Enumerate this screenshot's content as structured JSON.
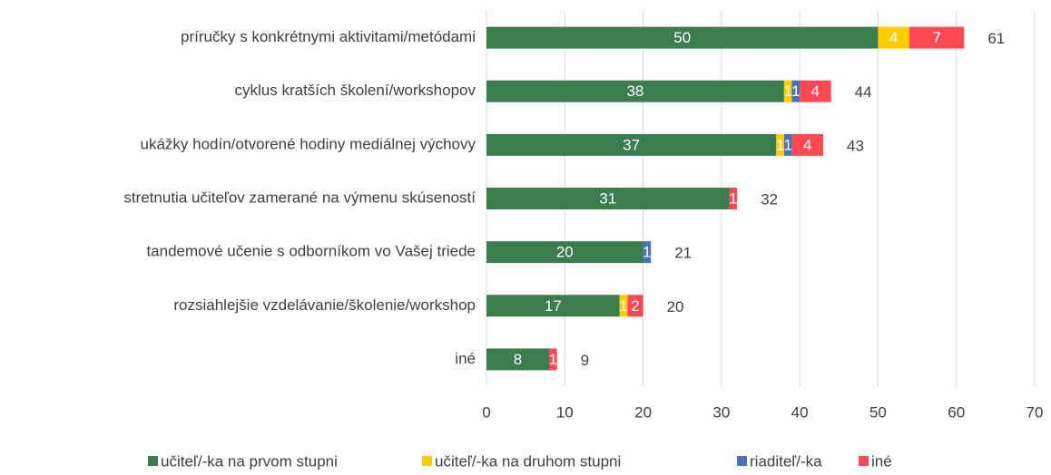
{
  "chart_data": {
    "type": "stacked-bar-horizontal",
    "categories": [
      "príručky s konkrétnymi aktivitami/metódami",
      "cyklus kratších školení/workshopov",
      "ukážky hodín/otvorené hodiny mediálnej výchovy",
      "stretnutia učiteľov zamerané na výmenu skúseností",
      "tandemové učenie s odborníkom vo Vašej triede",
      "rozsiahlejšie vzdelávanie/školenie/workshop",
      "iné"
    ],
    "series": [
      {
        "name": "učiteľ/-ka na prvom stupni",
        "color": "#3b7d4f",
        "values": [
          50,
          38,
          37,
          31,
          20,
          17,
          8
        ]
      },
      {
        "name": "učiteľ/-ka na druhom stupni",
        "color": "#ffcc00",
        "values": [
          4,
          1,
          1,
          null,
          null,
          1,
          null
        ]
      },
      {
        "name": "riaditeľ/-ka",
        "color": "#4a72b8",
        "values": [
          null,
          1,
          1,
          null,
          1,
          null,
          null
        ]
      },
      {
        "name": "iné",
        "color": "#ff4a55",
        "values": [
          7,
          4,
          4,
          1,
          null,
          2,
          1
        ]
      }
    ],
    "totals": [
      61,
      44,
      43,
      32,
      21,
      20,
      9
    ],
    "xlim": [
      0,
      70
    ],
    "xticks": [
      0,
      10,
      20,
      30,
      40,
      50,
      60,
      70
    ],
    "grid": true,
    "legend": "bottom"
  }
}
